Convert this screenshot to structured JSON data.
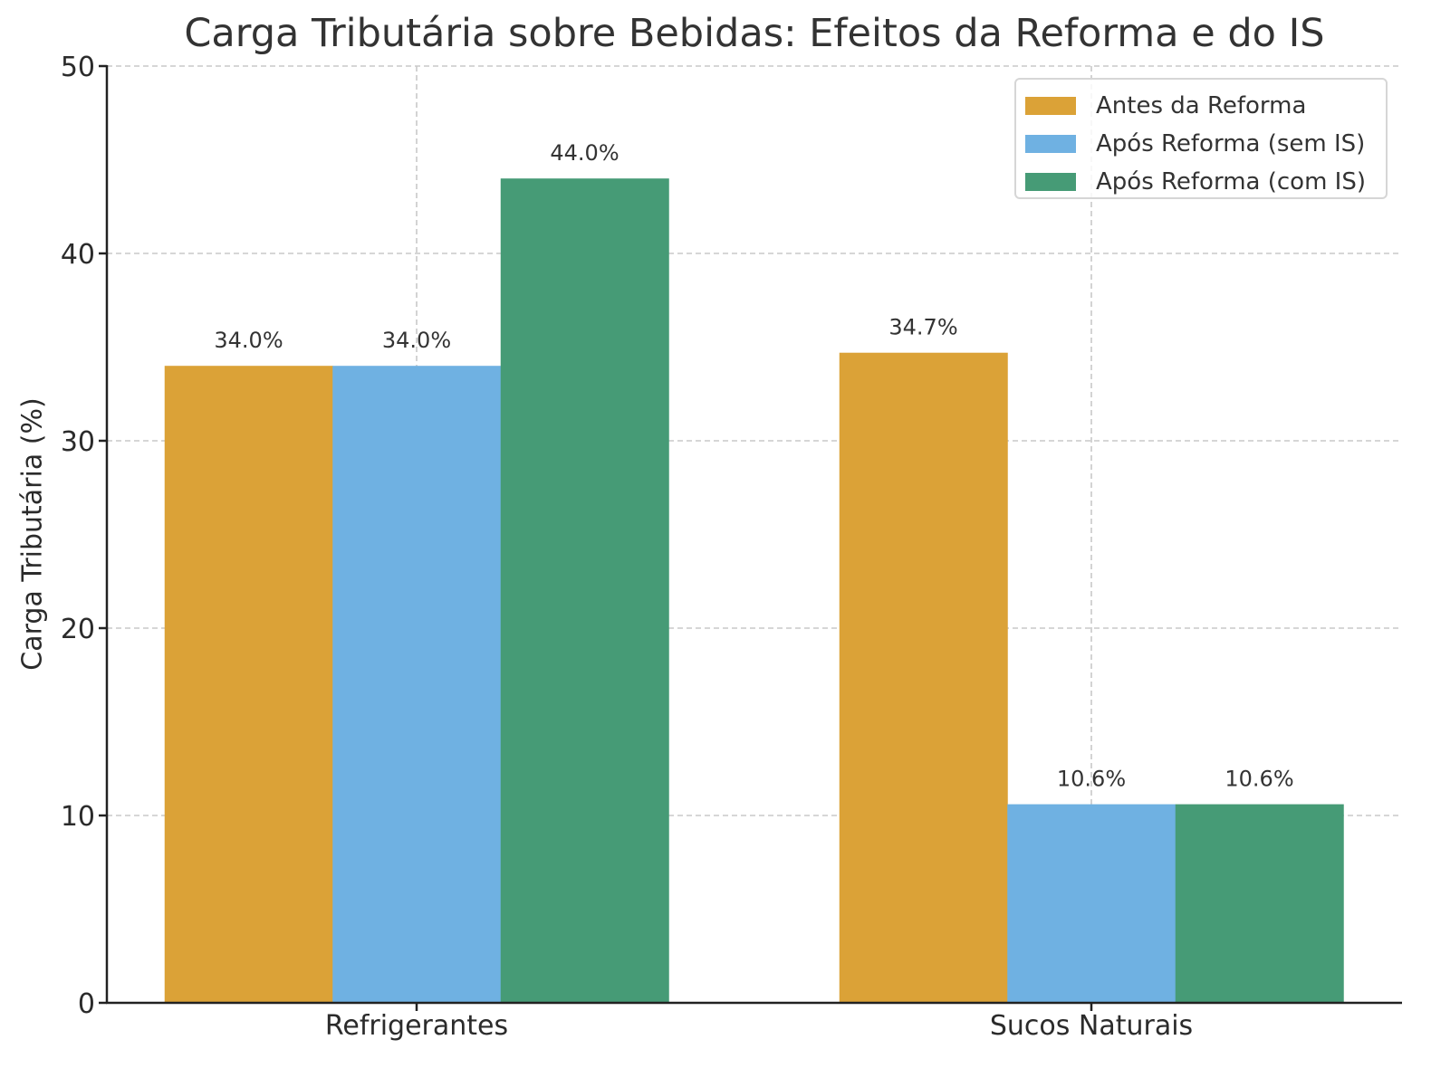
{
  "chart_data": {
    "type": "bar",
    "title": "Carga Tributária sobre Bebidas: Efeitos da Reforma e do IS",
    "xlabel": "",
    "ylabel": "Carga Tributária (%)",
    "categories": [
      "Refrigerantes",
      "Sucos Naturais"
    ],
    "series": [
      {
        "name": "Antes da Reforma",
        "color": "#dba237",
        "values": [
          34.0,
          34.7
        ],
        "labels": [
          "34.0%",
          "34.7%"
        ]
      },
      {
        "name": "Após Reforma (sem IS)",
        "color": "#6fb1e2",
        "values": [
          34.0,
          10.6
        ],
        "labels": [
          "34.0%",
          "10.6%"
        ]
      },
      {
        "name": "Após Reforma (com IS)",
        "color": "#469b76",
        "values": [
          44.0,
          10.6
        ],
        "labels": [
          "44.0%",
          "10.6%"
        ]
      }
    ],
    "ylim": [
      0,
      50
    ],
    "yticks": [
      0,
      10,
      20,
      30,
      40,
      50
    ],
    "grid": true,
    "grid_style": "dashed",
    "legend_position": "upper right"
  },
  "title": "Carga Tributária sobre Bebidas: Efeitos da Reforma e do IS",
  "ylabel": "Carga Tributária (%)",
  "legend": {
    "items": [
      {
        "label": "Antes da Reforma",
        "color": "#dba237"
      },
      {
        "label": "Após Reforma (sem IS)",
        "color": "#6fb1e2"
      },
      {
        "label": "Após Reforma (com IS)",
        "color": "#469b76"
      }
    ]
  }
}
